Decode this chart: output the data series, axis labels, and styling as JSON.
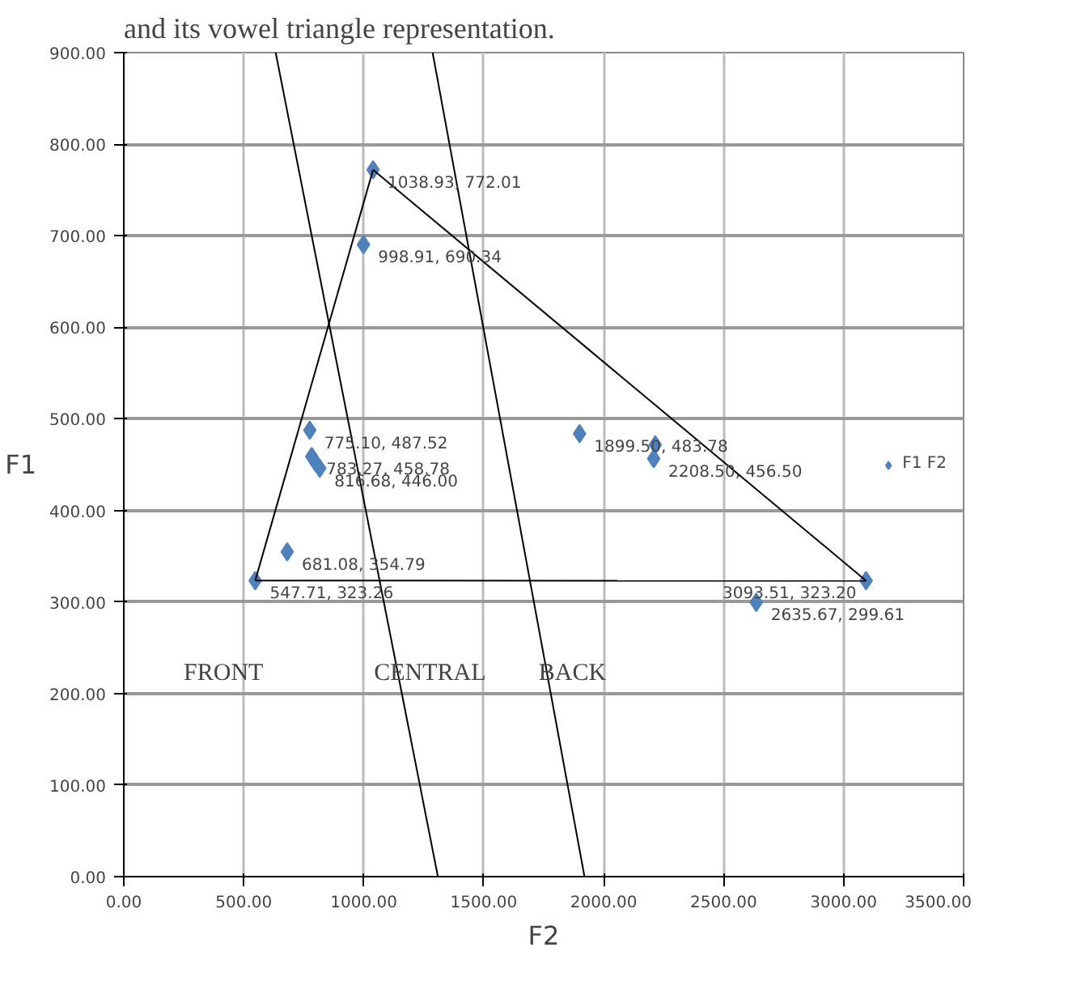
{
  "chart_data": {
    "type": "scatter",
    "title": "and its vowel triangle representation.",
    "xlabel": "F2",
    "ylabel": "F1",
    "xlim": [
      0,
      3500
    ],
    "xticks": [
      {
        "value": 0,
        "label": "0.00"
      },
      {
        "value": 500,
        "label": "500.00"
      },
      {
        "value": 1000,
        "label": "1000.00"
      },
      {
        "value": 1500,
        "label": "1500.00"
      },
      {
        "value": 2000,
        "label": "2000.00"
      },
      {
        "value": 2500,
        "label": "2500.00"
      },
      {
        "value": 3000,
        "label": "3000.00"
      },
      {
        "value": 3500,
        "label": "3500.00"
      }
    ],
    "ylim": [
      0,
      900
    ],
    "yticks": [
      {
        "value": 0,
        "label": "0.00"
      },
      {
        "value": 100,
        "label": "100.00"
      },
      {
        "value": 200,
        "label": "200.00"
      },
      {
        "value": 300,
        "label": "300.00"
      },
      {
        "value": 400,
        "label": "400.00"
      },
      {
        "value": 500,
        "label": "500.00"
      },
      {
        "value": 600,
        "label": "600.00"
      },
      {
        "value": 700,
        "label": "700.00"
      },
      {
        "value": 800,
        "label": "800.00"
      },
      {
        "value": 900,
        "label": "900.00"
      }
    ],
    "grid": true,
    "legend": "right",
    "series": [
      {
        "name": "F1 F2",
        "marker": "diamond",
        "color": "#4f81bd",
        "x": [
          1038.93,
          998.91,
          775.1,
          783.27,
          800,
          816.68,
          681.08,
          547.71,
          1899.5,
          2215,
          2208.5,
          3093.51,
          2635.67
        ],
        "values": [
          772.01,
          690.34,
          487.52,
          458.78,
          452,
          446.0,
          354.79,
          323.26,
          483.78,
          471.64,
          456.5,
          323.2,
          299.61
        ],
        "value_labels": [
          "1038.93, 772.01",
          "998.91, 690.34",
          "775.10, 487.52",
          "783.27, 458.78",
          null,
          "816.68, 446.00",
          "681.08, 354.79",
          "547.71, 323.26",
          "1899.50, 483.78",
          null,
          "2208.50, 456.50",
          "3093.51, 323.20",
          "2635.67, 299.61"
        ]
      },
      {
        "type": "line",
        "color": "#000000",
        "x": [
          547.71,
          1038.93
        ],
        "values": [
          323.26,
          772.01
        ]
      },
      {
        "type": "line",
        "color": "#000000",
        "x": [
          1038.93,
          3093.51
        ],
        "values": [
          772.01,
          323.2
        ]
      },
      {
        "type": "line",
        "color": "#000000",
        "x": [
          547.71,
          3093.51
        ],
        "values": [
          323.26,
          323.2
        ]
      },
      {
        "type": "line",
        "color": "#000000",
        "x": [
          633,
          1309
        ],
        "values": [
          900,
          0
        ]
      },
      {
        "type": "line",
        "color": "#000000",
        "x": [
          1287,
          1920
        ],
        "values": [
          900,
          0
        ]
      }
    ],
    "annotations": [
      "FRONT",
      "CENTRAL",
      "BACK"
    ]
  }
}
